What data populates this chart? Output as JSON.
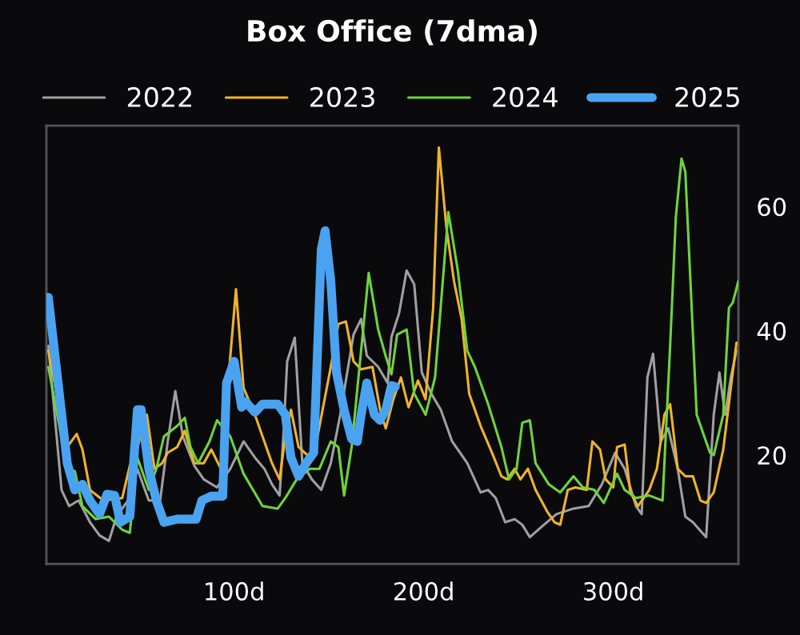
{
  "chart_data": {
    "type": "line",
    "title": "Box Office (7dma)",
    "xlim": [
      1,
      366
    ],
    "ylim": [
      2.5,
      73
    ],
    "xticks": [
      {
        "value": 100,
        "label": "100d"
      },
      {
        "value": 200,
        "label": "200d"
      },
      {
        "value": 300,
        "label": "300d"
      }
    ],
    "yticks": [
      20,
      40,
      60
    ],
    "grid": false,
    "legend": "top",
    "marker": "none",
    "line_style": "solid",
    "series": [
      {
        "name": "2022",
        "color": "#a0a0a0",
        "x": [
          2,
          9,
          13,
          18,
          24,
          29,
          34,
          38,
          44,
          49,
          55,
          61,
          65,
          69,
          73,
          79,
          84,
          91,
          98,
          105,
          111,
          116,
          120,
          124,
          126,
          128,
          132,
          136,
          141,
          146,
          151,
          156,
          163,
          167,
          170,
          176,
          181,
          183,
          187,
          191,
          195,
          199,
          204,
          209,
          215,
          223,
          230,
          234,
          238,
          243,
          248,
          252,
          256,
          262,
          270,
          279,
          287,
          294,
          301,
          306,
          312,
          315,
          318,
          321,
          325,
          329,
          334,
          338,
          342,
          349,
          353,
          356,
          359,
          362,
          365
        ],
        "values": [
          37.6,
          14.4,
          11.8,
          12.7,
          9.2,
          7.1,
          6.2,
          10.1,
          12.7,
          17.8,
          12.7,
          12.7,
          22.2,
          30.3,
          23.0,
          18.3,
          16.1,
          14.8,
          17.8,
          22.2,
          19.6,
          17.8,
          15.3,
          13.5,
          23.0,
          35.1,
          38.9,
          18.7,
          16.1,
          14.4,
          18.7,
          26.5,
          39.4,
          41.9,
          36.0,
          34.2,
          31.6,
          39.0,
          42.8,
          49.7,
          47.5,
          33.3,
          29.9,
          27.3,
          22.2,
          18.7,
          14.0,
          14.4,
          13.1,
          9.2,
          9.7,
          8.8,
          6.8,
          8.4,
          10.5,
          11.4,
          11.8,
          15.3,
          20.4,
          17.8,
          11.8,
          10.5,
          32.5,
          36.3,
          22.2,
          24.3,
          17.8,
          10.1,
          9.2,
          6.8,
          26.5,
          33.3,
          26.5,
          32.5,
          36.8
        ]
      },
      {
        "name": "2023",
        "color": "#f0b429",
        "x": [
          2,
          12,
          17,
          20,
          24,
          31,
          41,
          45,
          49,
          54,
          58,
          62,
          65,
          70,
          74,
          79,
          84,
          88,
          93,
          97,
          101,
          105,
          111,
          115,
          120,
          124,
          127,
          130,
          134,
          140,
          144,
          151,
          155,
          159,
          163,
          167,
          173,
          177,
          180,
          184,
          188,
          192,
          197,
          201,
          205,
          208,
          212,
          216,
          220,
          224,
          230,
          236,
          241,
          244,
          248,
          251,
          255,
          259,
          265,
          269,
          272,
          276,
          280,
          286,
          289,
          293,
          296,
          300,
          302,
          306,
          309,
          313,
          319,
          323,
          327,
          330,
          334,
          338,
          342,
          346,
          349,
          353,
          358,
          362,
          365
        ],
        "values": [
          36.8,
          21.3,
          23.4,
          20.9,
          14.4,
          12.7,
          13.1,
          18.3,
          21.3,
          26.5,
          17.8,
          18.7,
          20.4,
          21.3,
          23.9,
          18.7,
          18.7,
          20.9,
          17.8,
          null,
          46.7,
          30.8,
          26.5,
          23.0,
          18.7,
          16.1,
          23.0,
          27.3,
          21.3,
          19.6,
          23.0,
          34.2,
          41.1,
          41.5,
          35.1,
          33.8,
          34.2,
          27.3,
          24.3,
          29.0,
          32.5,
          27.7,
          32.0,
          29.0,
          43.7,
          69.5,
          56.6,
          48.0,
          41.9,
          29.9,
          24.7,
          20.4,
          16.6,
          16.1,
          17.8,
          16.1,
          17.8,
          14.4,
          11.0,
          9.2,
          8.8,
          14.4,
          14.8,
          14.4,
          22.2,
          20.9,
          16.1,
          14.8,
          21.3,
          21.7,
          14.0,
          11.8,
          14.4,
          17.8,
          26.5,
          28.2,
          17.8,
          16.6,
          16.6,
          12.7,
          12.3,
          14.0,
          20.9,
          30.8,
          38.1
        ]
      },
      {
        "name": "2024",
        "color": "#6fd43c",
        "x": [
          2,
          12,
          16,
          20,
          27,
          34,
          41,
          45,
          49,
          55,
          59,
          63,
          70,
          74,
          77,
          81,
          87,
          91,
          98,
          105,
          115,
          123,
          127,
          133,
          140,
          145,
          151,
          155,
          158,
          162,
          167,
          171,
          176,
          180,
          183,
          186,
          191,
          195,
          201,
          206,
          213,
          218,
          223,
          227,
          234,
          241,
          245,
          249,
          252,
          256,
          259,
          266,
          272,
          279,
          284,
          290,
          295,
          302,
          306,
          312,
          319,
          326,
          330,
          333,
          336,
          338,
          344,
          348,
          351,
          353,
          358,
          361,
          363,
          366
        ],
        "values": [
          34.2,
          17.8,
          17.4,
          11.8,
          9.7,
          10.1,
          8.0,
          7.5,
          19.6,
          14.4,
          17.8,
          23.0,
          24.7,
          26.0,
          21.3,
          18.7,
          22.2,
          25.6,
          23.0,
          17.0,
          11.8,
          11.4,
          13.1,
          16.1,
          17.8,
          17.8,
          22.2,
          21.3,
          13.5,
          21.3,
          null,
          49.3,
          40.2,
          35.9,
          33.0,
          39.4,
          40.2,
          29.9,
          26.5,
          32.5,
          59.1,
          49.7,
          36.8,
          34.2,
          28.2,
          21.3,
          16.1,
          17.8,
          25.2,
          25.6,
          18.7,
          15.3,
          14.0,
          16.6,
          14.8,
          14.4,
          12.3,
          17.0,
          14.4,
          13.1,
          13.5,
          12.7,
          37.6,
          58.3,
          67.7,
          65.6,
          26.5,
          23.0,
          20.4,
          20.0,
          26.5,
          43.7,
          44.5,
          48.0
        ]
      },
      {
        "name": "2025",
        "color": "#4aa3f0",
        "x": [
          2,
          12,
          16,
          20,
          24,
          29,
          33,
          37,
          40,
          45,
          49,
          51,
          55,
          59,
          63,
          70,
          76,
          80,
          83,
          88,
          94,
          96,
          100,
          104,
          106,
          111,
          115,
          119,
          123,
          127,
          130,
          134,
          138,
          142,
          146,
          148,
          151,
          154,
          158,
          162,
          165,
          167,
          170,
          174,
          177,
          180,
          183,
          185
        ],
        "values": [
          45.4,
          18.7,
          14.4,
          15.3,
          12.7,
          10.5,
          13.7,
          13.5,
          9.2,
          10.1,
          27.3,
          27.3,
          17.8,
          12.7,
          9.2,
          9.7,
          9.7,
          9.7,
          12.7,
          13.4,
          13.4,
          31.6,
          35.1,
          27.7,
          28.6,
          26.9,
          28.2,
          28.2,
          28.2,
          26.5,
          19.6,
          16.6,
          18.7,
          20.4,
          53.1,
          56.1,
          48.0,
          33.3,
          27.3,
          22.6,
          22.2,
          26.5,
          31.6,
          26.5,
          25.6,
          27.3,
          31.2,
          31.0
        ]
      }
    ]
  }
}
